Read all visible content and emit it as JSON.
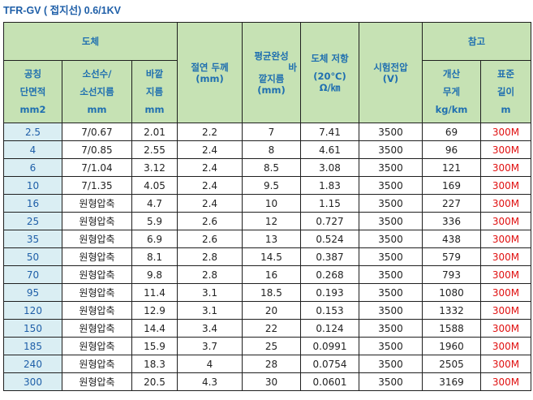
{
  "title": "TFR-GV ( 접지선) 0.6/1KV",
  "header": {
    "conductor": "도체",
    "insulation": "절연 두께 (mm)",
    "avg_od": [
      "평균완성",
      "바",
      "깥지름",
      "(mm)"
    ],
    "resistance": [
      "도체 저항",
      "(20℃)",
      "Ω/㎞"
    ],
    "test_voltage": [
      "시험전압",
      "(V)"
    ],
    "reference": "참고",
    "area": [
      "공칭",
      "단면적",
      "mm2"
    ],
    "strands": [
      "소선수/",
      "소선지름",
      "mm"
    ],
    "outer": [
      "바깥",
      "지름",
      "mm"
    ],
    "weight": [
      "개산",
      "무게",
      "kg/km"
    ],
    "length": [
      "표준",
      "길이",
      "m"
    ]
  },
  "rows": [
    {
      "area": "2.5",
      "strands": "7/0.67",
      "od": "2.01",
      "ins": "2.2",
      "avg": "7",
      "res": "7.41",
      "v": "3500",
      "w": "69",
      "len": "300M"
    },
    {
      "area": "4",
      "strands": "7/0.85",
      "od": "2.55",
      "ins": "2.4",
      "avg": "8",
      "res": "4.61",
      "v": "3500",
      "w": "96",
      "len": "300M"
    },
    {
      "area": "6",
      "strands": "7/1.04",
      "od": "3.12",
      "ins": "2.4",
      "avg": "8.5",
      "res": "3.08",
      "v": "3500",
      "w": "121",
      "len": "300M"
    },
    {
      "area": "10",
      "strands": "7/1.35",
      "od": "4.05",
      "ins": "2.4",
      "avg": "9.5",
      "res": "1.83",
      "v": "3500",
      "w": "169",
      "len": "300M"
    },
    {
      "area": "16",
      "strands": "원형압축",
      "od": "4.7",
      "ins": "2.4",
      "avg": "10",
      "res": "1.15",
      "v": "3500",
      "w": "227",
      "len": "300M"
    },
    {
      "area": "25",
      "strands": "원형압축",
      "od": "5.9",
      "ins": "2.6",
      "avg": "12",
      "res": "0.727",
      "v": "3500",
      "w": "336",
      "len": "300M"
    },
    {
      "area": "35",
      "strands": "원형압축",
      "od": "6.9",
      "ins": "2.6",
      "avg": "13",
      "res": "0.524",
      "v": "3500",
      "w": "438",
      "len": "300M"
    },
    {
      "area": "50",
      "strands": "원형압축",
      "od": "8.1",
      "ins": "2.8",
      "avg": "14.5",
      "res": "0.387",
      "v": "3500",
      "w": "579",
      "len": "300M"
    },
    {
      "area": "70",
      "strands": "원형압축",
      "od": "9.8",
      "ins": "2.8",
      "avg": "16",
      "res": "0.268",
      "v": "3500",
      "w": "793",
      "len": "300M"
    },
    {
      "area": "95",
      "strands": "원형압축",
      "od": "11.4",
      "ins": "3.1",
      "avg": "18.5",
      "res": "0.193",
      "v": "3500",
      "w": "1080",
      "len": "300M"
    },
    {
      "area": "120",
      "strands": "원형압축",
      "od": "12.9",
      "ins": "3.1",
      "avg": "20",
      "res": "0.153",
      "v": "3500",
      "w": "1332",
      "len": "300M"
    },
    {
      "area": "150",
      "strands": "원형압축",
      "od": "14.4",
      "ins": "3.4",
      "avg": "22",
      "res": "0.124",
      "v": "3500",
      "w": "1588",
      "len": "300M"
    },
    {
      "area": "185",
      "strands": "원형압축",
      "od": "15.9",
      "ins": "3.7",
      "avg": "25",
      "res": "0.0991",
      "v": "3500",
      "w": "1960",
      "len": "300M"
    },
    {
      "area": "240",
      "strands": "원형압축",
      "od": "18.3",
      "ins": "4",
      "avg": "28",
      "res": "0.0754",
      "v": "3500",
      "w": "2505",
      "len": "300M"
    },
    {
      "area": "300",
      "strands": "원형압축",
      "od": "20.5",
      "ins": "4.3",
      "avg": "30",
      "res": "0.0601",
      "v": "3500",
      "w": "3169",
      "len": "300M"
    }
  ]
}
